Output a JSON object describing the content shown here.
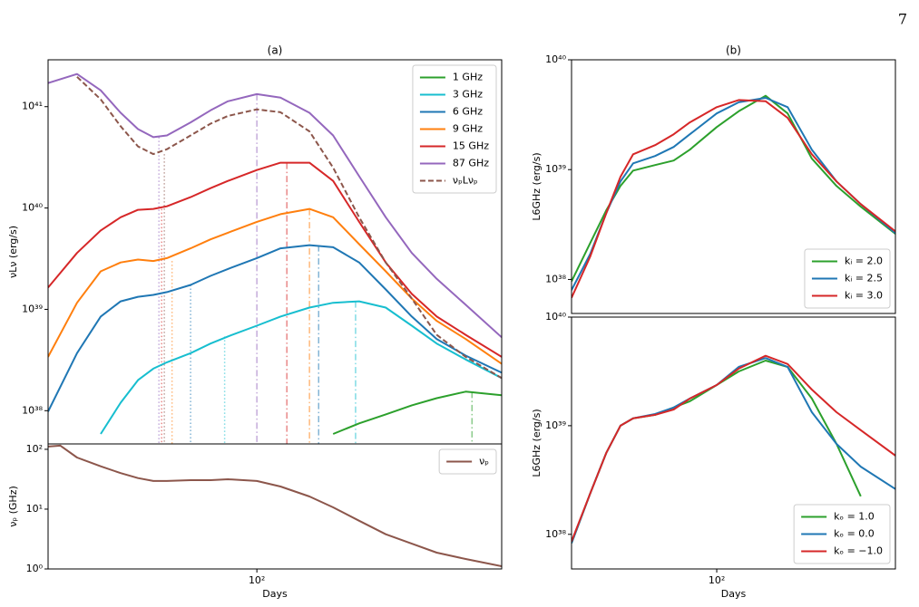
{
  "page_number": "7",
  "chart_data": [
    {
      "type": "line",
      "title": "(a)",
      "ylabel": "νLν (erg/s)",
      "xscale": "log",
      "yscale": "log",
      "legend": "upper right",
      "xlim": [
        20,
        660
      ],
      "ylim": [
        4.7e+37,
        2.9e+41
      ],
      "yticks": [
        {
          "value": 1e+38,
          "label": "10³⁸"
        },
        {
          "value": 1e+39,
          "label": "10³⁹"
        },
        {
          "value": 1e+40,
          "label": "10⁴⁰"
        },
        {
          "value": 1e+41,
          "label": "10⁴¹"
        }
      ],
      "x": [
        20,
        25,
        30,
        35,
        40,
        45,
        50,
        60,
        70,
        80,
        100,
        120,
        150,
        180,
        220,
        270,
        330,
        400,
        500,
        660
      ],
      "series": [
        {
          "name": "1 GHz",
          "color": "#2ca02c",
          "values": [
            null,
            null,
            null,
            null,
            null,
            null,
            null,
            null,
            null,
            null,
            null,
            null,
            null,
            5.9e+37,
            7.5e+37,
            9.2e+37,
            1.13e+38,
            1.33e+38,
            1.54e+38,
            1.42e+38
          ]
        },
        {
          "name": "3 GHz",
          "color": "#17becf",
          "values": [
            null,
            null,
            5.9e+37,
            1.2e+38,
            2e+38,
            2.6e+38,
            3e+38,
            3.7e+38,
            4.6e+38,
            5.4e+38,
            6.9e+38,
            8.5e+38,
            1.04e+39,
            1.16e+39,
            1.2e+39,
            1.04e+39,
            6.9e+38,
            4.6e+38,
            3.2e+38,
            2.1e+38
          ]
        },
        {
          "name": "6 GHz",
          "color": "#1f77b4",
          "values": [
            9.8e+37,
            3.7e+38,
            8.5e+38,
            1.2e+39,
            1.33e+39,
            1.39e+39,
            1.48e+39,
            1.74e+39,
            2.14e+39,
            2.5e+39,
            3.2e+39,
            4e+39,
            4.3e+39,
            4.1e+39,
            2.9e+39,
            1.57e+39,
            8.5e+38,
            5.1e+38,
            3.5e+38,
            2.37e+38
          ]
        },
        {
          "name": "9 GHz",
          "color": "#ff7f0e",
          "values": [
            3.4e+38,
            1.16e+39,
            2.37e+39,
            2.9e+39,
            3.1e+39,
            3e+39,
            3.2e+39,
            4e+39,
            4.9e+39,
            5.7e+39,
            7.3e+39,
            8.7e+39,
            9.8e+39,
            8.1e+39,
            4.4e+39,
            2.37e+39,
            1.28e+39,
            7.7e+38,
            5.1e+38,
            2.9e+38
          ]
        },
        {
          "name": "15 GHz",
          "color": "#d62728",
          "values": [
            1.64e+39,
            3.6e+39,
            6e+39,
            8.1e+39,
            9.6e+39,
            9.8e+39,
            1.04e+40,
            1.28e+40,
            1.57e+40,
            1.85e+40,
            2.37e+40,
            2.8e+40,
            2.8e+40,
            1.85e+40,
            7.3e+39,
            2.9e+39,
            1.42e+39,
            8.5e+38,
            5.6e+38,
            3.4e+38
          ]
        },
        {
          "name": "87 GHz",
          "color": "#9467bd",
          "values": [
            1.71e+41,
            2.1e+41,
            1.45e+41,
            8.7e+40,
            6e+40,
            5e+40,
            5.2e+40,
            7e+40,
            9.2e+40,
            1.13e+41,
            1.33e+41,
            1.23e+41,
            8.7e+40,
            5.2e+40,
            2.06e+40,
            8.1e+39,
            3.6e+39,
            2e+39,
            1.11e+39,
            5.3e+38
          ]
        },
        {
          "name": "νₚLνₚ",
          "color": "#8c564b",
          "dash": true,
          "values": [
            null,
            1.97e+41,
            1.18e+41,
            6.4e+40,
            4.05e+40,
            3.4e+40,
            3.8e+40,
            5.2e+40,
            6.8e+40,
            8.1e+40,
            9.4e+40,
            8.8e+40,
            5.7e+40,
            2.5e+40,
            8.1e+39,
            2.9e+39,
            1.28e+39,
            5.6e+38,
            3.4e+38,
            2.1e+38
          ]
        }
      ],
      "vlines": [
        {
          "x": 47,
          "y": 5e+40,
          "color": "#9467bd",
          "style": "dotted"
        },
        {
          "x": 49,
          "y": 3.4e+40,
          "color": "#8c564b",
          "style": "dotted"
        },
        {
          "x": 48,
          "y": 9.8e+39,
          "color": "#d62728",
          "style": "dotted"
        },
        {
          "x": 52,
          "y": 3e+39,
          "color": "#ff7f0e",
          "style": "dotted"
        },
        {
          "x": 60,
          "y": 1.74e+39,
          "color": "#1f77b4",
          "style": "dotted"
        },
        {
          "x": 78,
          "y": 5.4e+38,
          "color": "#17becf",
          "style": "dotted"
        },
        {
          "x": 100,
          "y": 1.33e+41,
          "color": "#9467bd",
          "style": "dashdot"
        },
        {
          "x": 126,
          "y": 2.8e+40,
          "color": "#d62728",
          "style": "dashdot"
        },
        {
          "x": 150,
          "y": 9.8e+39,
          "color": "#ff7f0e",
          "style": "dashdot"
        },
        {
          "x": 161,
          "y": 4.3e+39,
          "color": "#1f77b4",
          "style": "dashdot"
        },
        {
          "x": 214,
          "y": 1.2e+39,
          "color": "#17becf",
          "style": "dashdot"
        },
        {
          "x": 525,
          "y": 1.54e+38,
          "color": "#2ca02c",
          "style": "dashdot"
        }
      ]
    },
    {
      "type": "line",
      "xlabel": "Days",
      "ylabel": "νₚ (GHz)",
      "xscale": "log",
      "yscale": "log",
      "legend": "upper right",
      "xlim": [
        20,
        660
      ],
      "ylim": [
        1,
        123
      ],
      "xticks": [
        {
          "value": 100,
          "label": "10²"
        }
      ],
      "yticks": [
        {
          "value": 1,
          "label": "10⁰"
        },
        {
          "value": 10,
          "label": "10¹"
        },
        {
          "value": 100,
          "label": "10²"
        }
      ],
      "x": [
        20,
        22,
        25,
        30,
        35,
        40,
        45,
        50,
        60,
        70,
        80,
        100,
        120,
        150,
        180,
        220,
        270,
        330,
        400,
        500,
        660
      ],
      "series": [
        {
          "name": "νₚ",
          "color": "#8c564b",
          "values": [
            111,
            115,
            73,
            52,
            40,
            33,
            29.5,
            29.5,
            30.5,
            30.5,
            31.6,
            29.5,
            23.9,
            16.3,
            10.7,
            6.4,
            3.8,
            2.65,
            1.87,
            1.47,
            1.11
          ]
        }
      ]
    },
    {
      "type": "line",
      "title": "(b)",
      "ylabel": "L6GHz (erg/s)",
      "xscale": "log",
      "yscale": "log",
      "legend": "lower right",
      "xlim": [
        30,
        440
      ],
      "ylim": [
        4.9e+37,
        1e+40
      ],
      "yticks": [
        {
          "value": 1e+38,
          "label": "10³⁸"
        },
        {
          "value": 1e+39,
          "label": "10³⁹"
        },
        {
          "value": 1e+40,
          "label": "10⁴⁰"
        }
      ],
      "x": [
        30,
        35,
        40,
        45,
        50,
        60,
        70,
        80,
        100,
        120,
        150,
        180,
        220,
        270,
        330,
        440
      ],
      "series": [
        {
          "name": "kᵢ = 2.0",
          "color": "#2ca02c",
          "values": [
            9.6e+37,
            2.14e+38,
            4.25e+38,
            7.1e+38,
            9.8e+38,
            1.1e+39,
            1.21e+39,
            1.52e+39,
            2.44e+39,
            3.4e+39,
            4.7e+39,
            3.25e+39,
            1.26e+39,
            7.1e+38,
            4.6e+38,
            2.6e+38
          ]
        },
        {
          "name": "kᵢ = 2.5",
          "color": "#1f77b4",
          "values": [
            8e+37,
            1.7e+38,
            4e+38,
            7.8e+38,
            1.14e+39,
            1.33e+39,
            1.61e+39,
            2.1e+39,
            3.25e+39,
            4.1e+39,
            4.5e+39,
            3.7e+39,
            1.52e+39,
            7.8e+38,
            4.85e+38,
            2.64e+38
          ]
        },
        {
          "name": "kᵢ = 3.0",
          "color": "#d62728",
          "values": [
            6.8e+37,
            1.61e+38,
            4e+38,
            8.6e+38,
            1.38e+39,
            1.67e+39,
            2.1e+39,
            2.69e+39,
            3.7e+39,
            4.3e+39,
            4.2e+39,
            2.96e+39,
            1.38e+39,
            7.8e+38,
            4.85e+38,
            2.74e+38
          ]
        }
      ]
    },
    {
      "type": "line",
      "xlabel": "Days",
      "ylabel": "L6GHz (erg/s)",
      "xscale": "log",
      "yscale": "log",
      "legend": "lower right",
      "xlim": [
        30,
        440
      ],
      "ylim": [
        4.8e+37,
        1e+40
      ],
      "xticks": [
        {
          "value": 100,
          "label": "10²"
        }
      ],
      "yticks": [
        {
          "value": 1e+38,
          "label": "10³⁸"
        },
        {
          "value": 1e+39,
          "label": "10³⁹"
        },
        {
          "value": 1e+40,
          "label": "10⁴⁰"
        }
      ],
      "x": [
        30,
        35,
        40,
        45,
        50,
        60,
        70,
        80,
        100,
        120,
        150,
        180,
        220,
        270,
        330,
        440
      ],
      "series": [
        {
          "name": "kₒ = 1.0",
          "color": "#2ca02c",
          "values": [
            8.3e+37,
            2.37e+38,
            5.6e+38,
            1e+39,
            1.17e+39,
            1.26e+39,
            1.47e+39,
            1.68e+39,
            2.37e+39,
            3.16e+39,
            3.98e+39,
            3.48e+39,
            1.78e+39,
            6.8e+38,
            2.24e+38,
            null
          ]
        },
        {
          "name": "kₒ = 0.0",
          "color": "#1f77b4",
          "values": [
            8.3e+37,
            2.37e+38,
            5.6e+38,
            1e+39,
            1.17e+39,
            1.28e+39,
            1.47e+39,
            1.78e+39,
            2.37e+39,
            3.48e+39,
            4.2e+39,
            3.48e+39,
            1.33e+39,
            6.8e+38,
            4.2e+38,
            2.61e+38
          ]
        },
        {
          "name": "kₒ = −1.0",
          "color": "#d62728",
          "values": [
            8.6e+37,
            2.37e+38,
            5.6e+38,
            1e+39,
            1.17e+39,
            1.26e+39,
            1.41e+39,
            1.78e+39,
            2.37e+39,
            3.35e+39,
            4.4e+39,
            3.7e+39,
            2.15e+39,
            1.33e+39,
            9.1e+38,
            5.3e+38
          ]
        }
      ]
    }
  ]
}
